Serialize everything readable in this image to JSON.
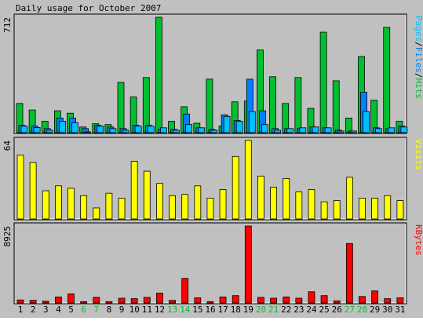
{
  "title": "Daily usage for October 2007",
  "colors": {
    "background": "#c0c0c0",
    "hits": "#00c030",
    "files": "#0080ff",
    "pages": "#00c0ff",
    "visits": "#ffff00",
    "kbytes": "#ff0000",
    "weekend_label": "#00c030"
  },
  "chart_data": [
    {
      "type": "bar",
      "name": "hits-files-pages",
      "categories": [
        "1",
        "2",
        "3",
        "4",
        "5",
        "6",
        "7",
        "8",
        "9",
        "10",
        "11",
        "12",
        "13",
        "14",
        "15",
        "16",
        "17",
        "18",
        "19",
        "20",
        "21",
        "22",
        "23",
        "24",
        "25",
        "26",
        "27",
        "28",
        "29",
        "30",
        "31"
      ],
      "weekend_days": [
        "6",
        "7",
        "13",
        "14",
        "20",
        "21",
        "27",
        "28"
      ],
      "ymax_label": "712",
      "ylim": [
        0,
        712
      ],
      "legend_label": "Pages/Files/Hits",
      "legend": [
        {
          "text": "Pages",
          "color": "#00c0ff"
        },
        {
          "text": "/",
          "color": "#000000"
        },
        {
          "text": "Files",
          "color": "#0080ff"
        },
        {
          "text": "/",
          "color": "#000000"
        },
        {
          "text": "Hits",
          "color": "#00c030"
        }
      ],
      "series": [
        {
          "name": "Hits",
          "color": "#00c030",
          "values": [
            180,
            140,
            70,
            135,
            120,
            35,
            55,
            50,
            310,
            220,
            340,
            712,
            70,
            160,
            58,
            330,
            40,
            190,
            195,
            510,
            345,
            180,
            340,
            150,
            620,
            320,
            90,
            470,
            200,
            650,
            70
          ]
        },
        {
          "name": "Files",
          "color": "#0080ff",
          "values": [
            45,
            40,
            25,
            90,
            90,
            25,
            45,
            35,
            25,
            45,
            45,
            20,
            20,
            115,
            30,
            20,
            110,
            75,
            330,
            135,
            25,
            25,
            25,
            35,
            30,
            15,
            10,
            250,
            30,
            25,
            40
          ]
        },
        {
          "name": "Pages",
          "color": "#00c0ff",
          "values": [
            40,
            32,
            15,
            70,
            60,
            5,
            40,
            25,
            15,
            40,
            40,
            30,
            15,
            50,
            30,
            15,
            100,
            70,
            130,
            50,
            15,
            25,
            30,
            35,
            30,
            10,
            10,
            130,
            25,
            30,
            35
          ]
        }
      ]
    },
    {
      "type": "bar",
      "name": "visits",
      "ymax_label": "64",
      "ylim": [
        0,
        64
      ],
      "legend_label": "Visits",
      "series": [
        {
          "name": "Visits",
          "color": "#ffff00",
          "values": [
            52,
            46,
            23,
            27,
            25,
            19,
            9,
            21,
            17,
            47,
            39,
            29,
            19,
            20,
            27,
            17,
            24,
            51,
            64,
            35,
            26,
            33,
            22,
            24,
            14,
            15,
            34,
            17,
            17,
            19,
            15
          ]
        }
      ]
    },
    {
      "type": "bar",
      "name": "kbytes",
      "ymax_label": "8925",
      "ylim": [
        0,
        8925
      ],
      "legend_label": "KBytes",
      "series": [
        {
          "name": "KBytes",
          "color": "#ff0000",
          "values": [
            350,
            300,
            200,
            700,
            1050,
            150,
            650,
            150,
            550,
            500,
            650,
            1150,
            300,
            2850,
            600,
            150,
            700,
            850,
            8925,
            650,
            550,
            700,
            550,
            1300,
            850,
            250,
            6900,
            750,
            1400,
            500,
            600
          ]
        }
      ]
    }
  ]
}
